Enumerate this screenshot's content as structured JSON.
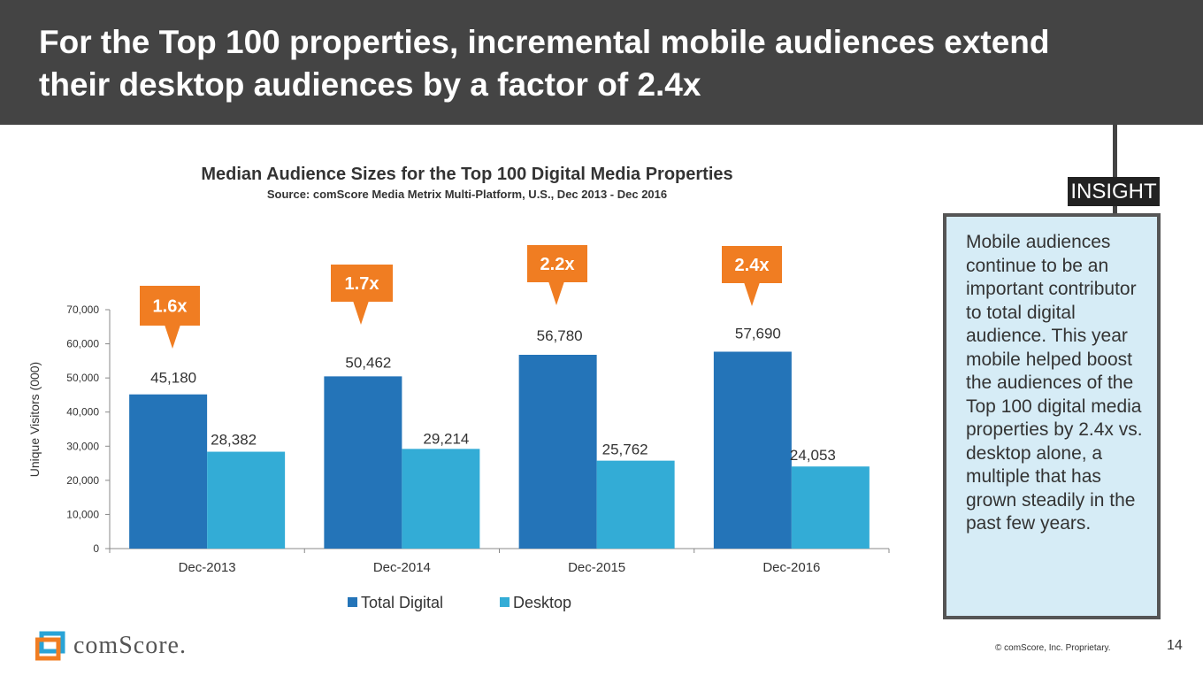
{
  "slide": {
    "title": "For the Top 100 properties, incremental mobile audiences extend their desktop audiences by a factor of 2.4x",
    "insight_tag": "INSIGHT",
    "insight_text": "Mobile audiences continue to be an important contributor to total digital audience. This year mobile helped boost the audiences of the Top 100 digital media properties by 2.4x vs. desktop alone, a multiple that has grown steadily in the past few years.",
    "logo_text": "comScore.",
    "copyright": "© comScore, Inc. Proprietary.",
    "page_number": "14"
  },
  "chart_data": {
    "type": "bar",
    "title": "Median Audience Sizes for the Top 100 Digital Media Properties",
    "subtitle": "Source: comScore Media Metrix Multi-Platform, U.S., Dec 2013 - Dec 2016",
    "xlabel": "",
    "ylabel": "Unique Visitors (000)",
    "ylim": [
      0,
      70000
    ],
    "yticks": [
      0,
      10000,
      20000,
      30000,
      40000,
      50000,
      60000,
      70000
    ],
    "ytick_labels": [
      "0",
      "10,000",
      "20,000",
      "30,000",
      "40,000",
      "50,000",
      "60,000",
      "70,000"
    ],
    "categories": [
      "Dec-2013",
      "Dec-2014",
      "Dec-2015",
      "Dec-2016"
    ],
    "series": [
      {
        "name": "Total Digital",
        "color": "#2474b8",
        "values": [
          45180,
          50462,
          56780,
          57690
        ],
        "labels": [
          "45,180",
          "50,462",
          "56,780",
          "57,690"
        ]
      },
      {
        "name": "Desktop",
        "color": "#33acd6",
        "values": [
          28382,
          29214,
          25762,
          24053
        ],
        "labels": [
          "28,382",
          "29,214",
          "25,762",
          "24,053"
        ]
      }
    ],
    "callouts": [
      "1.6x",
      "1.7x",
      "2.2x",
      "2.4x"
    ],
    "callout_color": "#f07d22",
    "legend_position": "bottom"
  }
}
